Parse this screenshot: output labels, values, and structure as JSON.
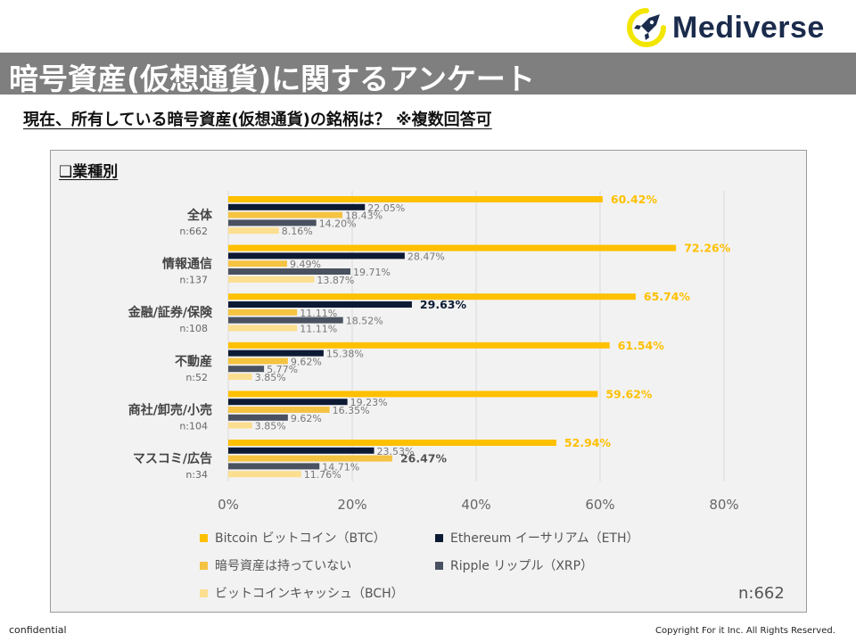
{
  "brand": {
    "name": "Mediverse"
  },
  "header": {
    "title": "暗号資産(仮想通貨)に関するアンケート"
  },
  "subtitle": "現在、所有している暗号資産(仮想通貨)の銘柄は？ ※複数回答可",
  "segment_label": "❑業種別",
  "n_total": "n:662",
  "footer": {
    "left": "confidential",
    "right": "Copyright For it Inc. All Rights Reserved."
  },
  "colors": {
    "btc": "#ffc000",
    "eth": "#0d1a33",
    "none": "#f5c342",
    "xrp": "#4a5160",
    "bch": "#fbde8f",
    "grid": "#d9d9d9",
    "label": "#777777"
  },
  "chart_data": {
    "type": "bar",
    "orientation": "horizontal",
    "title": "業種別",
    "categories": [
      {
        "name": "全体",
        "n": "n:662"
      },
      {
        "name": "情報通信",
        "n": "n:137"
      },
      {
        "name": "金融/証券/保険",
        "n": "n:108"
      },
      {
        "name": "不動産",
        "n": "n:52"
      },
      {
        "name": "商社/卸売/小売",
        "n": "n:104"
      },
      {
        "name": "マスコミ/広告",
        "n": "n:34"
      }
    ],
    "series": [
      {
        "key": "btc",
        "name": "Bitcoin ビットコイン（BTC）",
        "values": [
          60.42,
          72.26,
          65.74,
          61.54,
          59.62,
          52.94
        ],
        "labels": [
          "60.42%",
          "72.26%",
          "65.74%",
          "61.54%",
          "59.62%",
          "52.94%"
        ]
      },
      {
        "key": "eth",
        "name": "Ethereum イーサリアム（ETH）",
        "values": [
          22.05,
          28.47,
          29.63,
          15.38,
          19.23,
          23.53
        ],
        "labels": [
          "22.05%",
          "28.47%",
          "29.63%",
          "15.38%",
          "19.23%",
          "23.53%"
        ]
      },
      {
        "key": "none",
        "name": "暗号資産は持っていない",
        "values": [
          18.43,
          9.49,
          11.11,
          9.62,
          16.35,
          26.47
        ],
        "labels": [
          "18.43%",
          "9.49%",
          "11.11%",
          "9.62%",
          "16.35%",
          "26.47%"
        ]
      },
      {
        "key": "xrp",
        "name": "Ripple リップル（XRP）",
        "values": [
          14.2,
          19.71,
          18.52,
          5.77,
          9.62,
          14.71
        ],
        "labels": [
          "14.20%",
          "19.71%",
          "18.52%",
          "5.77%",
          "9.62%",
          "14.71%"
        ]
      },
      {
        "key": "bch",
        "name": "ビットコインキャッシュ（BCH）",
        "values": [
          8.16,
          13.87,
          11.11,
          3.85,
          3.85,
          11.76
        ],
        "labels": [
          "8.16%",
          "13.87%",
          "11.11%",
          "3.85%",
          "3.85%",
          "11.76%"
        ]
      }
    ],
    "highlighted": {
      "btc": [
        0,
        1,
        2,
        3,
        4,
        5
      ],
      "eth": [
        2
      ],
      "none": [
        5
      ]
    },
    "xlim": [
      0,
      80
    ],
    "xticks": [
      0,
      20,
      40,
      60,
      80
    ],
    "xtick_labels": [
      "0%",
      "20%",
      "40%",
      "60%",
      "80%"
    ],
    "grid": true,
    "legend_position": "bottom"
  }
}
